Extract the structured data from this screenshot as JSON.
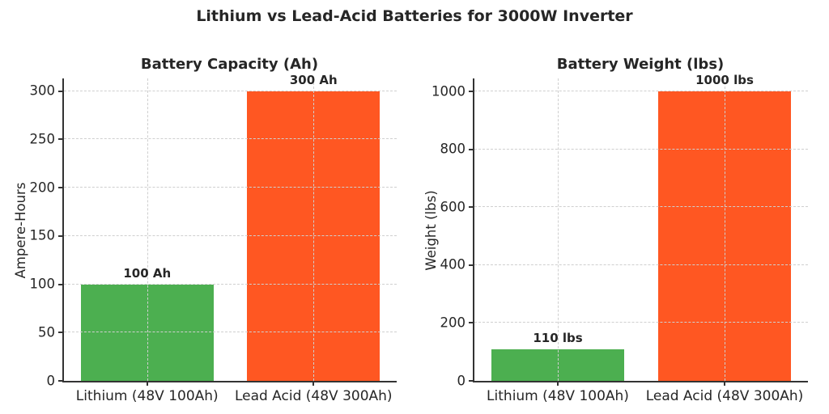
{
  "figure": {
    "suptitle": "Lithium vs Lead-Acid Batteries for 3000W Inverter"
  },
  "colors": {
    "lithium_green": "#4caf50",
    "lead_acid_orange": "#ff5722",
    "grid_gray": "#cfcfcf",
    "axis_dark": "#333333",
    "text_dark": "#262626"
  },
  "chart_data": [
    {
      "type": "bar",
      "title": "Battery Capacity (Ah)",
      "xlabel": "",
      "ylabel": "Ampere-Hours",
      "categories": [
        "Lithium (48V 100Ah)",
        "Lead Acid (48V 300Ah)"
      ],
      "values": [
        100,
        300
      ],
      "bar_labels": [
        "100 Ah",
        "300 Ah"
      ],
      "bar_colors": [
        "#4caf50",
        "#ff5722"
      ],
      "yticks": [
        0,
        50,
        100,
        150,
        200,
        250,
        300
      ],
      "ylim": [
        0,
        313
      ],
      "bar_width_fraction": 0.8,
      "grid": true,
      "grid_style": "dashed",
      "legend": "none"
    },
    {
      "type": "bar",
      "title": "Battery Weight (lbs)",
      "xlabel": "",
      "ylabel": "Weight (lbs)",
      "categories": [
        "Lithium (48V 100Ah)",
        "Lead Acid (48V 300Ah)"
      ],
      "values": [
        110,
        1000
      ],
      "bar_labels": [
        "110 lbs",
        "1000 lbs"
      ],
      "bar_colors": [
        "#4caf50",
        "#ff5722"
      ],
      "yticks": [
        0,
        200,
        400,
        600,
        800,
        1000
      ],
      "ylim": [
        0,
        1045
      ],
      "bar_width_fraction": 0.8,
      "grid": true,
      "grid_style": "dashed",
      "legend": "none"
    }
  ]
}
